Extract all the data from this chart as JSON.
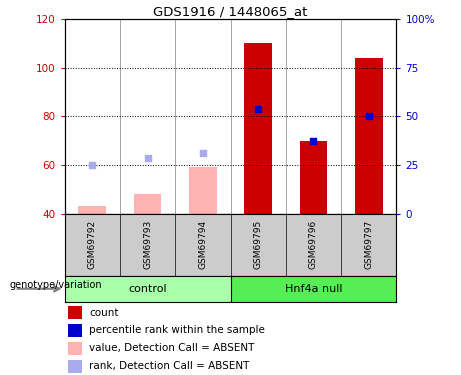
{
  "title": "GDS1916 / 1448065_at",
  "samples": [
    "GSM69792",
    "GSM69793",
    "GSM69794",
    "GSM69795",
    "GSM69796",
    "GSM69797"
  ],
  "ylim_left": [
    40,
    120
  ],
  "ylim_right": [
    0,
    100
  ],
  "yticks_left": [
    40,
    60,
    80,
    100,
    120
  ],
  "yticks_right": [
    0,
    25,
    50,
    75,
    100
  ],
  "ytick_labels_right": [
    "0",
    "25",
    "50",
    "75",
    "100%"
  ],
  "bar_values": [
    null,
    null,
    null,
    110,
    70,
    104
  ],
  "bar_color": "#cc0000",
  "absent_bar_values": [
    43,
    48,
    59,
    null,
    null,
    null
  ],
  "absent_bar_color": "#ffb3b3",
  "rank_values": [
    60,
    63,
    65,
    83,
    70,
    80
  ],
  "rank_absent": [
    true,
    true,
    true,
    false,
    false,
    false
  ],
  "rank_present_color": "#0000cc",
  "rank_absent_color": "#aaaaee",
  "left_ylabel_color": "#cc0000",
  "right_ylabel_color": "#0000cc",
  "legend_items": [
    {
      "label": "count",
      "color": "#cc0000"
    },
    {
      "label": "percentile rank within the sample",
      "color": "#0000cc"
    },
    {
      "label": "value, Detection Call = ABSENT",
      "color": "#ffb3b3"
    },
    {
      "label": "rank, Detection Call = ABSENT",
      "color": "#aaaaee"
    }
  ],
  "genotype_label": "genotype/variation",
  "control_color": "#aaffaa",
  "hnf4a_color": "#55ee55",
  "sample_bg_color": "#cccccc",
  "bar_width": 0.5
}
